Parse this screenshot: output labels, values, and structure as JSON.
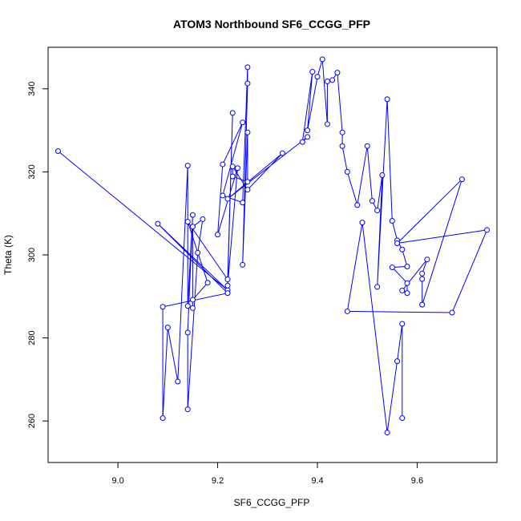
{
  "chart_data": {
    "type": "line",
    "title": "ATOM3 Northbound SF6_CCGG_PFP",
    "xlabel": "SF6_CCGG_PFP",
    "ylabel": "Theta (K)",
    "xlim": [
      8.86,
      9.76
    ],
    "ylim": [
      250,
      350
    ],
    "xticks": [
      "9.0",
      "9.2",
      "9.4",
      "9.6"
    ],
    "yticks": [
      "260",
      "280",
      "300",
      "320",
      "340"
    ],
    "grid": false,
    "legend": "none",
    "series": [
      {
        "color": "#0000ff",
        "marker": "open-circle",
        "points": [
          [
            8.88,
            325.0
          ],
          [
            9.22,
            291.5
          ],
          [
            9.08,
            307.5
          ],
          [
            9.22,
            290.8
          ],
          [
            9.09,
            287.5
          ],
          [
            9.09,
            260.7
          ],
          [
            9.1,
            282.5
          ],
          [
            9.12,
            269.5
          ],
          [
            9.14,
            321.5
          ],
          [
            9.14,
            287.7
          ],
          [
            9.15,
            309.6
          ],
          [
            9.14,
            281.3
          ],
          [
            9.14,
            262.8
          ],
          [
            9.16,
            300.5
          ],
          [
            9.17,
            308.6
          ],
          [
            9.15,
            306.8
          ],
          [
            9.15,
            287.2
          ],
          [
            9.15,
            289.2
          ],
          [
            9.18,
            293.3
          ],
          [
            9.14,
            308.0
          ],
          [
            9.22,
            294.1
          ],
          [
            9.23,
            334.2
          ],
          [
            9.22,
            292.6
          ],
          [
            9.24,
            320.9
          ],
          [
            9.2,
            304.9
          ],
          [
            9.21,
            321.8
          ],
          [
            9.25,
            331.9
          ],
          [
            9.21,
            314.3
          ],
          [
            9.25,
            312.6
          ],
          [
            9.26,
            345.2
          ],
          [
            9.26,
            341.3
          ],
          [
            9.25,
            297.6
          ],
          [
            9.26,
            329.5
          ],
          [
            9.26,
            317.6
          ],
          [
            9.23,
            318.9
          ],
          [
            9.23,
            321.3
          ],
          [
            9.26,
            315.7
          ],
          [
            9.33,
            324.5
          ],
          [
            9.22,
            313.5
          ],
          [
            9.38,
            328.4
          ],
          [
            9.37,
            327.2
          ],
          [
            9.39,
            344.1
          ],
          [
            9.38,
            330.0
          ],
          [
            9.4,
            342.9
          ],
          [
            9.41,
            347.1
          ],
          [
            9.42,
            331.5
          ],
          [
            9.42,
            341.8
          ],
          [
            9.43,
            342.1
          ],
          [
            9.44,
            343.9
          ],
          [
            9.45,
            329.5
          ],
          [
            9.45,
            326.2
          ],
          [
            9.46,
            320.0
          ],
          [
            9.48,
            312.0
          ],
          [
            9.5,
            326.2
          ],
          [
            9.51,
            313.0
          ],
          [
            9.52,
            310.7
          ],
          [
            9.53,
            319.2
          ],
          [
            9.52,
            292.3
          ],
          [
            9.54,
            337.5
          ],
          [
            9.55,
            308.2
          ],
          [
            9.56,
            303.5
          ],
          [
            9.57,
            301.3
          ],
          [
            9.58,
            297.2
          ],
          [
            9.55,
            297.0
          ],
          [
            9.58,
            293.2
          ],
          [
            9.58,
            290.8
          ],
          [
            9.57,
            291.4
          ],
          [
            9.62,
            298.9
          ],
          [
            9.61,
            295.5
          ],
          [
            9.61,
            294.2
          ],
          [
            9.61,
            288.0
          ],
          [
            9.69,
            318.2
          ],
          [
            9.56,
            302.8
          ],
          [
            9.74,
            306.0
          ],
          [
            9.67,
            286.1
          ],
          [
            9.46,
            286.4
          ],
          [
            9.49,
            307.8
          ],
          [
            9.54,
            257.2
          ],
          [
            9.56,
            274.4
          ],
          [
            9.57,
            283.4
          ],
          [
            9.57,
            260.7
          ]
        ]
      }
    ]
  }
}
